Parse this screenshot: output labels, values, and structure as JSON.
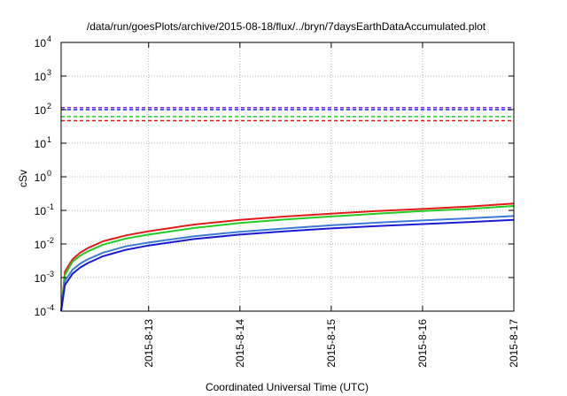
{
  "chart_data": {
    "type": "line",
    "title": "/data/run/goesPlots/archive/2015-08-18/flux/../bryn/7daysEarthDataAccumulated.plot",
    "xlabel": "Coordinated Universal Time (UTC)",
    "ylabel": "cSv",
    "x_ticks": [
      "2015-8-13",
      "2015-8-14",
      "2015-8-15",
      "2015-8-16",
      "2015-8-17"
    ],
    "xlim": [
      "2015-08-12 01:00",
      "2015-08-17 00:00"
    ],
    "y_scale": "log",
    "ylim": [
      0.0001,
      10000
    ],
    "y_ticks": [
      {
        "base": "10",
        "exp": "-4",
        "value": 0.0001
      },
      {
        "base": "10",
        "exp": "-3",
        "value": 0.001
      },
      {
        "base": "10",
        "exp": "-2",
        "value": 0.01
      },
      {
        "base": "10",
        "exp": "-1",
        "value": 0.1
      },
      {
        "base": "10",
        "exp": "0",
        "value": 1
      },
      {
        "base": "10",
        "exp": "1",
        "value": 10
      },
      {
        "base": "10",
        "exp": "2",
        "value": 100
      },
      {
        "base": "10",
        "exp": "3",
        "value": 1000
      },
      {
        "base": "10",
        "exp": "4",
        "value": 10000
      }
    ],
    "grid": true,
    "thresholds": [
      {
        "value": 115,
        "color": "#8a2be2"
      },
      {
        "value": 100,
        "color": "#1a1aff"
      },
      {
        "value": 62,
        "color": "#22cc22"
      },
      {
        "value": 47,
        "color": "#e41a1a"
      }
    ],
    "series": [
      {
        "color": "#e41a1a",
        "x": [
          "2015-08-12 01:00",
          "2015-08-12 02:00",
          "2015-08-12 04:00",
          "2015-08-12 06:00",
          "2015-08-12 08:00",
          "2015-08-12 12:00",
          "2015-08-12 18:00",
          "2015-08-13 00:00",
          "2015-08-13 12:00",
          "2015-08-14 00:00",
          "2015-08-14 12:00",
          "2015-08-15 00:00",
          "2015-08-15 12:00",
          "2015-08-16 00:00",
          "2015-08-16 12:00",
          "2015-08-17 00:00"
        ],
        "values": [
          0.0001,
          0.0015,
          0.0035,
          0.0055,
          0.0075,
          0.012,
          0.018,
          0.024,
          0.038,
          0.052,
          0.066,
          0.08,
          0.095,
          0.11,
          0.13,
          0.16
        ]
      },
      {
        "color": "#22cc22",
        "x": [
          "2015-08-12 01:00",
          "2015-08-12 02:00",
          "2015-08-12 04:00",
          "2015-08-12 06:00",
          "2015-08-12 08:00",
          "2015-08-12 12:00",
          "2015-08-12 18:00",
          "2015-08-13 00:00",
          "2015-08-13 12:00",
          "2015-08-14 00:00",
          "2015-08-14 12:00",
          "2015-08-15 00:00",
          "2015-08-15 12:00",
          "2015-08-16 00:00",
          "2015-08-16 12:00",
          "2015-08-17 00:00"
        ],
        "values": [
          0.0001,
          0.0012,
          0.003,
          0.0045,
          0.006,
          0.0095,
          0.0145,
          0.019,
          0.03,
          0.042,
          0.054,
          0.066,
          0.08,
          0.095,
          0.11,
          0.135
        ]
      },
      {
        "color": "#3a7bd5",
        "x": [
          "2015-08-12 01:00",
          "2015-08-12 02:00",
          "2015-08-12 04:00",
          "2015-08-12 06:00",
          "2015-08-12 08:00",
          "2015-08-12 12:00",
          "2015-08-12 18:00",
          "2015-08-13 00:00",
          "2015-08-13 12:00",
          "2015-08-14 00:00",
          "2015-08-14 12:00",
          "2015-08-15 00:00",
          "2015-08-15 12:00",
          "2015-08-16 00:00",
          "2015-08-16 12:00",
          "2015-08-17 00:00"
        ],
        "values": [
          0.0001,
          0.0008,
          0.0017,
          0.0026,
          0.0035,
          0.0055,
          0.0085,
          0.011,
          0.017,
          0.023,
          0.029,
          0.036,
          0.043,
          0.05,
          0.058,
          0.068
        ]
      },
      {
        "color": "#1a1ad0",
        "x": [
          "2015-08-12 01:00",
          "2015-08-12 02:00",
          "2015-08-12 04:00",
          "2015-08-12 06:00",
          "2015-08-12 08:00",
          "2015-08-12 12:00",
          "2015-08-12 18:00",
          "2015-08-13 00:00",
          "2015-08-13 12:00",
          "2015-08-14 00:00",
          "2015-08-14 12:00",
          "2015-08-15 00:00",
          "2015-08-15 12:00",
          "2015-08-16 00:00",
          "2015-08-16 12:00",
          "2015-08-17 00:00"
        ],
        "values": [
          0.0001,
          0.0006,
          0.0013,
          0.002,
          0.0027,
          0.0043,
          0.0067,
          0.009,
          0.014,
          0.019,
          0.024,
          0.029,
          0.034,
          0.039,
          0.045,
          0.052
        ]
      }
    ]
  }
}
